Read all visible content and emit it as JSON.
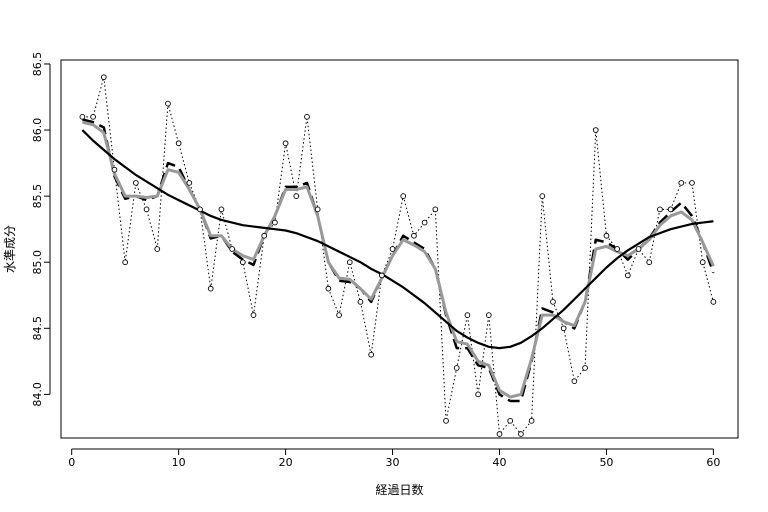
{
  "chart_data": {
    "type": "line",
    "xlabel": "経過日数",
    "ylabel": "水準成分",
    "xlim": [
      -1,
      62.3
    ],
    "ylim": [
      83.67,
      86.53
    ],
    "xticks": [
      0,
      10,
      20,
      30,
      40,
      50,
      60
    ],
    "yticks": [
      84.0,
      84.5,
      85.0,
      85.5,
      86.0,
      86.5
    ],
    "xtick_labels": [
      "0",
      "10",
      "20",
      "30",
      "40",
      "50",
      "60"
    ],
    "ytick_labels": [
      "84.0",
      "84.5",
      "85.0",
      "85.5",
      "86.0",
      "86.5"
    ],
    "grid": false,
    "x": [
      1,
      2,
      3,
      4,
      5,
      6,
      7,
      8,
      9,
      10,
      11,
      12,
      13,
      14,
      15,
      16,
      17,
      18,
      19,
      20,
      21,
      22,
      23,
      24,
      25,
      26,
      27,
      28,
      29,
      30,
      31,
      32,
      33,
      34,
      35,
      36,
      37,
      38,
      39,
      40,
      41,
      42,
      43,
      44,
      45,
      46,
      47,
      48,
      49,
      50,
      51,
      52,
      53,
      54,
      55,
      56,
      57,
      58,
      59,
      60
    ],
    "series": [
      {
        "style": "dotted-points",
        "values": [
          86.1,
          86.1,
          86.4,
          85.7,
          85.0,
          85.6,
          85.4,
          85.1,
          86.2,
          85.9,
          85.6,
          85.4,
          84.8,
          85.4,
          85.1,
          85.0,
          84.6,
          85.2,
          85.3,
          85.9,
          85.5,
          86.1,
          85.4,
          84.8,
          84.6,
          85.0,
          84.7,
          84.3,
          84.9,
          85.1,
          85.5,
          85.2,
          85.3,
          85.4,
          83.8,
          84.2,
          84.6,
          84.0,
          84.6,
          83.7,
          83.8,
          83.7,
          83.8,
          85.5,
          84.7,
          84.5,
          84.1,
          84.2,
          86.0,
          85.2,
          85.1,
          84.9,
          85.1,
          85.0,
          85.4,
          85.4,
          85.6,
          85.6,
          85.0,
          84.7
        ]
      },
      {
        "style": "dashed-black",
        "values": [
          86.08,
          86.06,
          86.02,
          85.65,
          85.48,
          85.5,
          85.47,
          85.5,
          85.75,
          85.72,
          85.55,
          85.4,
          85.18,
          85.2,
          85.08,
          85.02,
          84.98,
          85.2,
          85.35,
          85.57,
          85.57,
          85.6,
          85.35,
          85.0,
          84.86,
          84.85,
          84.8,
          84.7,
          84.88,
          85.05,
          85.2,
          85.15,
          85.1,
          84.95,
          84.6,
          84.35,
          84.35,
          84.22,
          84.2,
          84.0,
          83.95,
          83.95,
          84.25,
          84.65,
          84.62,
          84.55,
          84.5,
          84.7,
          85.17,
          85.15,
          85.1,
          85.02,
          85.1,
          85.18,
          85.3,
          85.38,
          85.45,
          85.35,
          85.15,
          84.92
        ]
      },
      {
        "style": "solid-gray",
        "values": [
          86.06,
          86.04,
          85.98,
          85.67,
          85.5,
          85.5,
          85.49,
          85.5,
          85.7,
          85.68,
          85.55,
          85.4,
          85.2,
          85.2,
          85.1,
          85.05,
          85.02,
          85.2,
          85.35,
          85.55,
          85.55,
          85.57,
          85.35,
          85.0,
          84.88,
          84.87,
          84.8,
          84.72,
          84.88,
          85.05,
          85.17,
          85.13,
          85.08,
          84.95,
          84.62,
          84.4,
          84.38,
          84.25,
          84.22,
          84.03,
          83.98,
          84.0,
          84.27,
          84.6,
          84.6,
          84.55,
          84.52,
          84.7,
          85.1,
          85.12,
          85.08,
          85.05,
          85.1,
          85.17,
          85.28,
          85.35,
          85.38,
          85.32,
          85.15,
          84.97
        ]
      },
      {
        "style": "solid-black-thick",
        "values": [
          86.0,
          85.92,
          85.85,
          85.78,
          85.72,
          85.66,
          85.61,
          85.56,
          85.51,
          85.47,
          85.43,
          85.39,
          85.35,
          85.32,
          85.3,
          85.28,
          85.27,
          85.26,
          85.25,
          85.24,
          85.22,
          85.19,
          85.16,
          85.12,
          85.08,
          85.04,
          85.0,
          84.95,
          84.91,
          84.86,
          84.81,
          84.75,
          84.69,
          84.62,
          84.55,
          84.48,
          84.43,
          84.39,
          84.36,
          84.35,
          84.36,
          84.39,
          84.44,
          84.5,
          84.57,
          84.64,
          84.72,
          84.8,
          84.88,
          84.96,
          85.03,
          85.09,
          85.14,
          85.19,
          85.22,
          85.25,
          85.27,
          85.29,
          85.3,
          85.31
        ]
      }
    ]
  }
}
